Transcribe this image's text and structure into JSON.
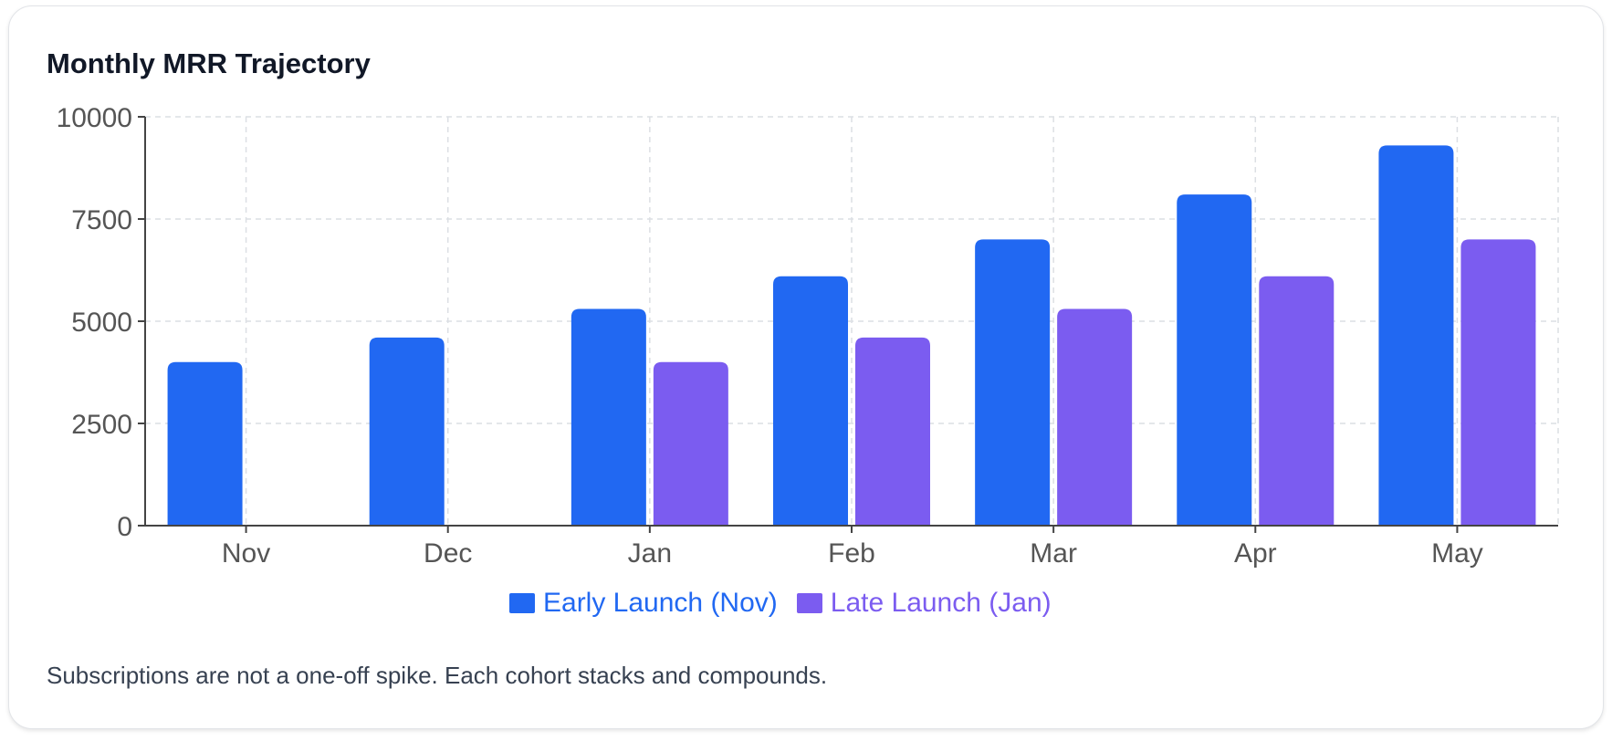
{
  "card": {
    "title": "Monthly MRR Trajectory",
    "footnote": "Subscriptions are not a one-off spike. Each cohort stacks and compounds."
  },
  "chart_data": {
    "type": "bar",
    "title": "Monthly MRR Trajectory",
    "xlabel": "",
    "ylabel": "",
    "categories": [
      "Nov",
      "Dec",
      "Jan",
      "Feb",
      "Mar",
      "Apr",
      "May"
    ],
    "ylim": [
      0,
      10000
    ],
    "yticks": [
      0,
      2500,
      5000,
      7500,
      10000
    ],
    "grid": true,
    "legend_position": "bottom",
    "series": [
      {
        "name": "Early Launch (Nov)",
        "color": "#2168f2",
        "values": [
          4000,
          4600,
          5300,
          6100,
          7000,
          8100,
          9300
        ]
      },
      {
        "name": "Late Launch (Jan)",
        "color": "#7b5cf0",
        "values": [
          null,
          null,
          4000,
          4600,
          5300,
          6100,
          7000
        ]
      }
    ]
  }
}
